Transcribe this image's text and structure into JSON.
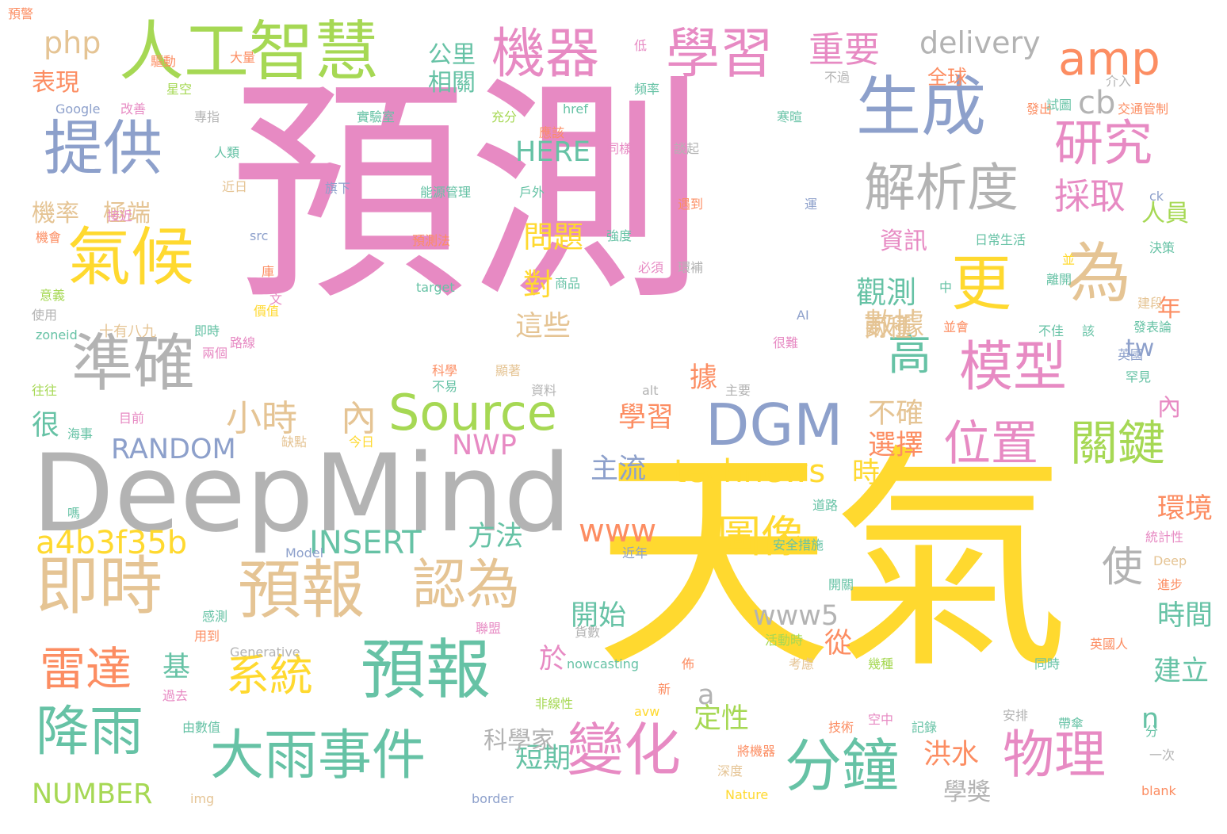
{
  "palette": {
    "pink": "#e78ac3",
    "yellow": "#ffd92f",
    "grey": "#b3b3b3",
    "green": "#a6d854",
    "teal": "#66c2a5",
    "blue": "#8da0cb",
    "orange": "#fc8d62",
    "tan": "#e5c494"
  },
  "words": [
    {
      "text": "預測",
      "color": "pink"
    },
    {
      "text": "天氣",
      "color": "yellow"
    },
    {
      "text": "DeepMind",
      "color": "grey"
    },
    {
      "text": "人工智慧",
      "color": "green"
    },
    {
      "text": "機器",
      "color": "pink"
    },
    {
      "text": "學習",
      "color": "pink"
    },
    {
      "text": "生成",
      "color": "blue"
    },
    {
      "text": "amp",
      "color": "orange"
    },
    {
      "text": "提供",
      "color": "blue"
    },
    {
      "text": "氣候",
      "color": "yellow"
    },
    {
      "text": "準確",
      "color": "grey"
    },
    {
      "text": "即時",
      "color": "tan"
    },
    {
      "text": "預報",
      "color": "tan"
    },
    {
      "text": "認為",
      "color": "tan"
    },
    {
      "text": "預報",
      "color": "teal"
    },
    {
      "text": "DGM",
      "color": "blue"
    },
    {
      "text": "模型",
      "color": "pink"
    },
    {
      "text": "更",
      "color": "yellow"
    },
    {
      "text": "為",
      "color": "tan"
    },
    {
      "text": "研究",
      "color": "pink"
    },
    {
      "text": "解析度",
      "color": "grey"
    },
    {
      "text": "Source",
      "color": "green"
    },
    {
      "text": "位置",
      "color": "pink"
    },
    {
      "text": "關鍵",
      "color": "green"
    },
    {
      "text": "高",
      "color": "teal"
    },
    {
      "text": "變化",
      "color": "pink"
    },
    {
      "text": "分鐘",
      "color": "teal"
    },
    {
      "text": "物理",
      "color": "pink"
    },
    {
      "text": "大雨事件",
      "color": "teal"
    },
    {
      "text": "降雨",
      "color": "teal"
    },
    {
      "text": "雷達",
      "color": "orange"
    },
    {
      "text": "系統",
      "color": "yellow"
    },
    {
      "text": "圖像",
      "color": "yellow"
    },
    {
      "text": "使",
      "color": "grey"
    },
    {
      "text": "小時",
      "color": "tan"
    },
    {
      "text": "內",
      "color": "tan"
    },
    {
      "text": "technews",
      "color": "yellow"
    },
    {
      "text": "www",
      "color": "orange"
    },
    {
      "text": "www5",
      "color": "grey"
    },
    {
      "text": "a4b3f35b",
      "color": "yellow"
    },
    {
      "text": "INSERT",
      "color": "teal"
    },
    {
      "text": "RANDOM",
      "color": "blue"
    },
    {
      "text": "NWP",
      "color": "pink"
    },
    {
      "text": "NUMBER",
      "color": "green"
    },
    {
      "text": "delivery",
      "color": "grey"
    },
    {
      "text": "php",
      "color": "tan"
    },
    {
      "text": "重要",
      "color": "pink"
    },
    {
      "text": "公里",
      "color": "teal"
    },
    {
      "text": "相關",
      "color": "teal"
    },
    {
      "text": "表現",
      "color": "orange"
    },
    {
      "text": "cb",
      "color": "grey"
    },
    {
      "text": "採取",
      "color": "pink"
    },
    {
      "text": "人員",
      "color": "green"
    },
    {
      "text": "資訊",
      "color": "pink"
    },
    {
      "text": "觀測",
      "color": "teal"
    },
    {
      "text": "數據",
      "color": "tan"
    },
    {
      "text": "兩種",
      "color": "tan"
    },
    {
      "text": "問題",
      "color": "yellow"
    },
    {
      "text": "對",
      "color": "yellow"
    },
    {
      "text": "這些",
      "color": "tan"
    },
    {
      "text": "HERE",
      "color": "teal"
    },
    {
      "text": "tw",
      "color": "blue"
    },
    {
      "text": "機率",
      "color": "tan"
    },
    {
      "text": "極端",
      "color": "tan"
    },
    {
      "text": "學習",
      "color": "orange"
    },
    {
      "text": "不確",
      "color": "tan"
    },
    {
      "text": "選擇",
      "color": "orange"
    },
    {
      "text": "主流",
      "color": "blue"
    },
    {
      "text": "時",
      "color": "yellow"
    },
    {
      "text": "環境",
      "color": "orange"
    },
    {
      "text": "方法",
      "color": "teal"
    },
    {
      "text": "開始",
      "color": "teal"
    },
    {
      "text": "時間",
      "color": "teal"
    },
    {
      "text": "從",
      "color": "orange"
    },
    {
      "text": "建立",
      "color": "teal"
    },
    {
      "text": "於",
      "color": "pink"
    },
    {
      "text": "定性",
      "color": "green"
    },
    {
      "text": "短期",
      "color": "teal"
    },
    {
      "text": "洪水",
      "color": "orange"
    },
    {
      "text": "學獎",
      "color": "grey"
    },
    {
      "text": "科學家",
      "color": "grey"
    },
    {
      "text": "基",
      "color": "teal"
    },
    {
      "text": "a",
      "color": "grey"
    },
    {
      "text": "n",
      "color": "teal"
    },
    {
      "text": "據",
      "color": "orange"
    },
    {
      "text": "年",
      "color": "orange"
    },
    {
      "text": "內",
      "color": "pink"
    },
    {
      "text": "很",
      "color": "teal"
    },
    {
      "text": "全球",
      "color": "orange"
    },
    {
      "text": "Google",
      "color": "blue"
    },
    {
      "text": "改善",
      "color": "pink"
    },
    {
      "text": "專指",
      "color": "grey"
    },
    {
      "text": "人類",
      "color": "teal"
    },
    {
      "text": "近日",
      "color": "tan"
    },
    {
      "text": "接近",
      "color": "pink"
    },
    {
      "text": "機會",
      "color": "orange"
    },
    {
      "text": "意義",
      "color": "green"
    },
    {
      "text": "使用",
      "color": "grey"
    },
    {
      "text": "zoneid",
      "color": "teal"
    },
    {
      "text": "十有八九",
      "color": "tan"
    },
    {
      "text": "即時",
      "color": "teal"
    },
    {
      "text": "路線",
      "color": "pink"
    },
    {
      "text": "價值",
      "color": "yellow"
    },
    {
      "text": "src",
      "color": "blue"
    },
    {
      "text": "庫",
      "color": "orange"
    },
    {
      "text": "文",
      "color": "pink"
    },
    {
      "text": "兩個",
      "color": "pink"
    },
    {
      "text": "往往",
      "color": "green"
    },
    {
      "text": "目前",
      "color": "pink"
    },
    {
      "text": "海事",
      "color": "teal"
    },
    {
      "text": "嗎",
      "color": "teal"
    },
    {
      "text": "缺點",
      "color": "tan"
    },
    {
      "text": "今日",
      "color": "yellow"
    },
    {
      "text": "驅動",
      "color": "orange"
    },
    {
      "text": "大量",
      "color": "orange"
    },
    {
      "text": "星空",
      "color": "green"
    },
    {
      "text": "低",
      "color": "pink"
    },
    {
      "text": "頻率",
      "color": "teal"
    },
    {
      "text": "實驗室",
      "color": "teal"
    },
    {
      "text": "充分",
      "color": "green"
    },
    {
      "text": "應該",
      "color": "orange"
    },
    {
      "text": "同樣",
      "color": "pink"
    },
    {
      "text": "談起",
      "color": "grey"
    },
    {
      "text": "旗下",
      "color": "blue"
    },
    {
      "text": "能源管理",
      "color": "teal"
    },
    {
      "text": "戶外",
      "color": "teal"
    },
    {
      "text": "遇到",
      "color": "orange"
    },
    {
      "text": "強度",
      "color": "teal"
    },
    {
      "text": "預測法",
      "color": "orange"
    },
    {
      "text": "環補",
      "color": "grey"
    },
    {
      "text": "必須",
      "color": "pink"
    },
    {
      "text": "target",
      "color": "teal"
    },
    {
      "text": "商品",
      "color": "teal"
    },
    {
      "text": "href",
      "color": "teal"
    },
    {
      "text": "不過",
      "color": "grey"
    },
    {
      "text": "介入",
      "color": "grey"
    },
    {
      "text": "交通管制",
      "color": "orange"
    },
    {
      "text": "試圖",
      "color": "teal"
    },
    {
      "text": "發出",
      "color": "orange"
    },
    {
      "text": "寒暄",
      "color": "teal"
    },
    {
      "text": "ck",
      "color": "blue"
    },
    {
      "text": "運",
      "color": "blue"
    },
    {
      "text": "日常生活",
      "color": "teal"
    },
    {
      "text": "決策",
      "color": "teal"
    },
    {
      "text": "並",
      "color": "yellow"
    },
    {
      "text": "離開",
      "color": "teal"
    },
    {
      "text": "中",
      "color": "teal"
    },
    {
      "text": "建段",
      "color": "tan"
    },
    {
      "text": "AI",
      "color": "blue"
    },
    {
      "text": "並會",
      "color": "orange"
    },
    {
      "text": "不佳",
      "color": "teal"
    },
    {
      "text": "該",
      "color": "teal"
    },
    {
      "text": "發表論",
      "color": "teal"
    },
    {
      "text": "很難",
      "color": "pink"
    },
    {
      "text": "英國",
      "color": "blue"
    },
    {
      "text": "罕見",
      "color": "teal"
    },
    {
      "text": "科學",
      "color": "orange"
    },
    {
      "text": "顯著",
      "color": "tan"
    },
    {
      "text": "不易",
      "color": "teal"
    },
    {
      "text": "資料",
      "color": "grey"
    },
    {
      "text": "alt",
      "color": "grey"
    },
    {
      "text": "主要",
      "color": "grey"
    },
    {
      "text": "Model",
      "color": "blue"
    },
    {
      "text": "近年",
      "color": "blue"
    },
    {
      "text": "安全措施",
      "color": "teal"
    },
    {
      "text": "道路",
      "color": "teal"
    },
    {
      "text": "統計性",
      "color": "pink"
    },
    {
      "text": "Deep",
      "color": "tan"
    },
    {
      "text": "進步",
      "color": "orange"
    },
    {
      "text": "開關",
      "color": "teal"
    },
    {
      "text": "感測",
      "color": "teal"
    },
    {
      "text": "用到",
      "color": "orange"
    },
    {
      "text": "聯盟",
      "color": "pink"
    },
    {
      "text": "貨數",
      "color": "grey"
    },
    {
      "text": "活動時",
      "color": "green"
    },
    {
      "text": "英國人",
      "color": "orange"
    },
    {
      "text": "Generative",
      "color": "grey"
    },
    {
      "text": "nowcasting",
      "color": "teal"
    },
    {
      "text": "考慮",
      "color": "tan"
    },
    {
      "text": "幾種",
      "color": "green"
    },
    {
      "text": "佈",
      "color": "orange"
    },
    {
      "text": "同時",
      "color": "teal"
    },
    {
      "text": "新",
      "color": "orange"
    },
    {
      "text": "過去",
      "color": "pink"
    },
    {
      "text": "非線性",
      "color": "green"
    },
    {
      "text": "avw",
      "color": "yellow"
    },
    {
      "text": "由數值",
      "color": "teal"
    },
    {
      "text": "技術",
      "color": "orange"
    },
    {
      "text": "空中",
      "color": "pink"
    },
    {
      "text": "記錄",
      "color": "teal"
    },
    {
      "text": "安排",
      "color": "grey"
    },
    {
      "text": "帶傘",
      "color": "teal"
    },
    {
      "text": "分",
      "color": "teal"
    },
    {
      "text": "將機器",
      "color": "orange"
    },
    {
      "text": "深度",
      "color": "tan"
    },
    {
      "text": "一次",
      "color": "grey"
    },
    {
      "text": "img",
      "color": "tan"
    },
    {
      "text": "border",
      "color": "blue"
    },
    {
      "text": "Nature",
      "color": "yellow"
    },
    {
      "text": "blank",
      "color": "orange"
    },
    {
      "text": "預警",
      "color": "orange"
    }
  ]
}
